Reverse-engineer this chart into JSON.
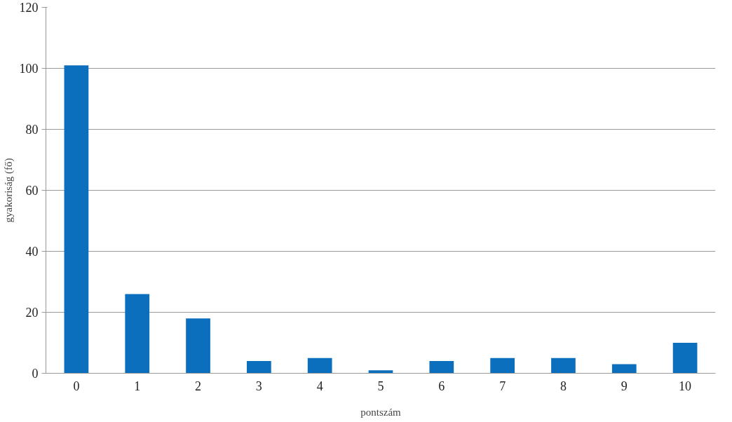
{
  "chart_data": {
    "type": "bar",
    "xlabel": "pontszám",
    "ylabel": "gyakoriság (fő)",
    "categories": [
      "0",
      "1",
      "2",
      "3",
      "4",
      "5",
      "6",
      "7",
      "8",
      "9",
      "10"
    ],
    "values": [
      101,
      26,
      18,
      4,
      5,
      1,
      4,
      5,
      5,
      3,
      10
    ],
    "color": "#0b6fbd",
    "ylim": [
      0,
      120
    ],
    "yticks": [
      0,
      20,
      40,
      60,
      80,
      100,
      120
    ],
    "grid": "y"
  }
}
